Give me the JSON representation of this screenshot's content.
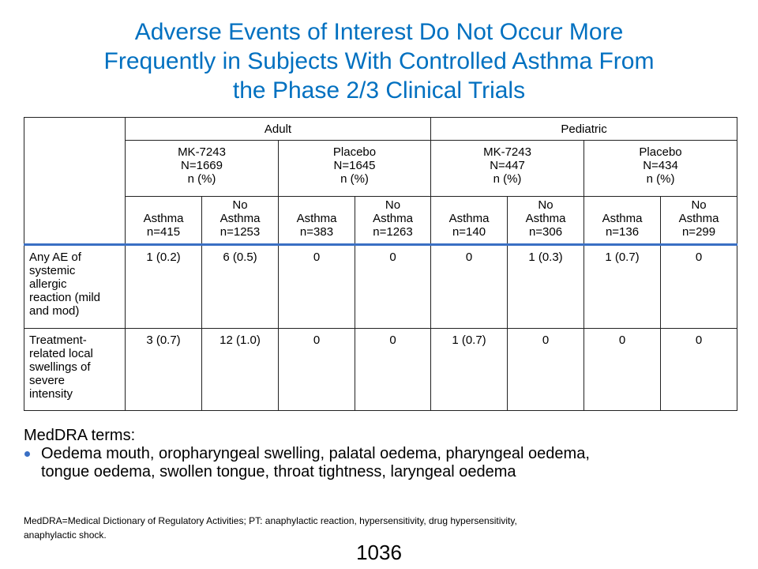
{
  "title": {
    "line1": "Adverse Events of Interest Do Not Occur More",
    "line2": "Frequently in Subjects With Controlled Asthma From",
    "line3": "the Phase 2/3 Clinical Trials"
  },
  "table": {
    "groups": [
      "Adult",
      "Pediatric"
    ],
    "arms": [
      [
        "MK-7243",
        "N=1669",
        "n (%)"
      ],
      [
        "Placebo",
        "N=1645",
        "n (%)"
      ],
      [
        "MK-7243",
        "N=447",
        "n (%)"
      ],
      [
        "Placebo",
        "N=434",
        "n (%)"
      ]
    ],
    "subgroups": [
      [
        "Asthma",
        "n=415"
      ],
      [
        "No",
        "Asthma",
        "n=1253"
      ],
      [
        "Asthma",
        "n=383"
      ],
      [
        "No",
        "Asthma",
        "n=1263"
      ],
      [
        "Asthma",
        "n=140"
      ],
      [
        "No",
        "Asthma",
        "n=306"
      ],
      [
        "Asthma",
        "n=136"
      ],
      [
        "No",
        "Asthma",
        "n=299"
      ]
    ],
    "rows": [
      {
        "label": [
          "Any AE of",
          "systemic",
          "allergic",
          "reaction (mild",
          "and mod)"
        ],
        "values": [
          "1 (0.2)",
          "6 (0.5)",
          "0",
          "0",
          "0",
          "1 (0.3)",
          "1 (0.7)",
          "0"
        ]
      },
      {
        "label": [
          "Treatment-",
          "related local",
          "swellings of",
          "severe",
          "intensity"
        ],
        "values": [
          "3 (0.7)",
          "12 (1.0)",
          "0",
          "0",
          "1 (0.7)",
          "0",
          "0",
          "0"
        ]
      }
    ]
  },
  "terms": {
    "heading": "MedDRA terms:",
    "bullet_line1": "Oedema mouth, oropharyngeal swelling, palatal oedema, pharyngeal oedema,",
    "bullet_line2": "tongue oedema, swollen tongue, throat tightness, laryngeal oedema"
  },
  "footnote": {
    "line1": "MedDRA=Medical Dictionary of Regulatory Activities; PT: anaphylactic reaction, hypersensitivity, drug hypersensitivity,",
    "line2": "anaphylactic shock."
  },
  "page_number": "1036",
  "colors": {
    "title": "#0070c0",
    "accent_rule": "#3a6fc4"
  }
}
